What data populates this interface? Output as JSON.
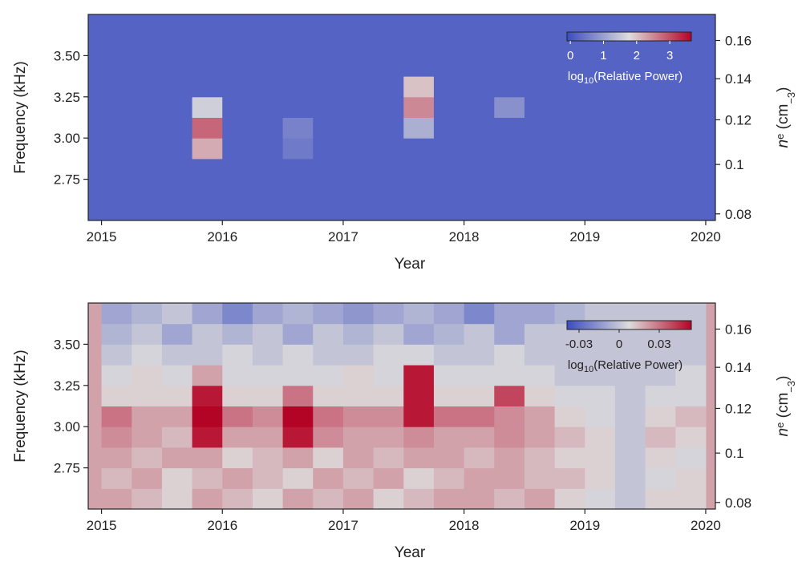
{
  "chart_data": [
    {
      "type": "heatmap",
      "xlabel": "Year",
      "ylabel": "Frequency (kHz)",
      "y2label": [
        "n",
        "e",
        " (cm",
        "−3",
        ")"
      ],
      "xlim": [
        2014.89,
        2020.08
      ],
      "xticks": [
        2015,
        2016,
        2017,
        2018,
        2019,
        2020
      ],
      "ylim": [
        2.5,
        3.75
      ],
      "yticks": [
        2.75,
        {
          "value": 3.0,
          "label": "3.00"
        },
        3.25,
        {
          "value": 3.5,
          "label": "3.50"
        }
      ],
      "y2scale": "sqrt",
      "y2lim": [
        0.0775,
        0.1744
      ],
      "y2ticks": [
        0.08,
        0.1,
        0.12,
        0.14,
        0.16
      ],
      "x_bins": [
        2015,
        2015.25,
        2015.5,
        2015.75,
        2016,
        2016.25,
        2016.5,
        2016.75,
        2017,
        2017.25,
        2017.5,
        2017.75,
        2018,
        2018.25,
        2018.5,
        2018.75,
        2019,
        2019.25,
        2019.5,
        2019.75,
        2020
      ],
      "y_bins": [
        2.5,
        2.625,
        2.75,
        2.875,
        3.0,
        3.125,
        3.25,
        3.375,
        3.5,
        3.625,
        3.75
      ],
      "z": [
        [
          0.2,
          0.2,
          0.2,
          0.2,
          0.2,
          0.2,
          0.2,
          0.2,
          0.2,
          0.2,
          0.2,
          0.2,
          0.2,
          0.2,
          0.2,
          0.2,
          0.2,
          0.2,
          0.2,
          0.2
        ],
        [
          0.2,
          0.2,
          0.2,
          0.2,
          0.2,
          0.2,
          0.2,
          0.2,
          0.2,
          0.2,
          0.2,
          0.2,
          0.2,
          0.2,
          0.2,
          0.2,
          0.2,
          0.2,
          0.2,
          0.2
        ],
        [
          0.2,
          0.2,
          0.2,
          0.2,
          0.2,
          0.2,
          0.2,
          0.2,
          0.2,
          0.2,
          0.2,
          0.2,
          0.2,
          0.2,
          0.2,
          0.2,
          0.2,
          0.2,
          0.2,
          0.2
        ],
        [
          0.2,
          0.2,
          0.2,
          2.2,
          0.2,
          0.2,
          0.5,
          0.2,
          0.2,
          0.2,
          0.2,
          0.2,
          0.2,
          0.2,
          0.2,
          0.2,
          0.2,
          0.2,
          0.2,
          0.2
        ],
        [
          0.2,
          0.2,
          0.2,
          2.8,
          0.2,
          0.2,
          0.6,
          0.2,
          0.2,
          0.2,
          1.2,
          0.2,
          0.2,
          0.2,
          0.2,
          0.2,
          0.2,
          0.2,
          0.2,
          0.2
        ],
        [
          0.2,
          0.2,
          0.2,
          1.6,
          0.2,
          0.2,
          0.2,
          0.2,
          0.2,
          0.2,
          2.5,
          0.2,
          0.2,
          0.8,
          0.2,
          0.2,
          0.2,
          0.2,
          0.2,
          0.2
        ],
        [
          0.2,
          0.2,
          0.2,
          0.2,
          0.2,
          0.2,
          0.2,
          0.2,
          0.2,
          0.2,
          2.0,
          0.2,
          0.2,
          0.2,
          0.2,
          0.2,
          0.2,
          0.2,
          0.2,
          0.2
        ],
        [
          0.2,
          0.2,
          0.2,
          0.2,
          0.2,
          0.2,
          0.2,
          0.2,
          0.2,
          0.2,
          0.2,
          0.2,
          0.2,
          0.2,
          0.2,
          0.2,
          0.2,
          0.2,
          0.2,
          0.2
        ],
        [
          0.2,
          0.2,
          0.2,
          0.2,
          0.2,
          0.2,
          0.2,
          0.2,
          0.2,
          0.2,
          0.2,
          0.2,
          0.2,
          0.2,
          0.2,
          0.2,
          0.2,
          0.2,
          0.2,
          0.2
        ],
        [
          0.2,
          0.2,
          0.2,
          0.2,
          0.2,
          0.2,
          0.2,
          0.2,
          0.2,
          0.2,
          0.2,
          0.2,
          0.2,
          0.2,
          0.2,
          0.2,
          0.2,
          0.2,
          0.2,
          0.2
        ]
      ],
      "colors": [
        "#3b4cc0",
        "#dddcdc",
        "#b40426"
      ],
      "clim": [
        -0.1,
        3.65
      ],
      "cticks": [
        0,
        1,
        2,
        3
      ],
      "clabel": [
        "log",
        "10",
        "(Relative Power)"
      ]
    },
    {
      "type": "heatmap",
      "xlabel": "Year",
      "ylabel": "Frequency (kHz)",
      "y2label": [
        "n",
        "e",
        " (cm",
        "−3",
        ")"
      ],
      "xlim": [
        2014.89,
        2020.08
      ],
      "xticks": [
        2015,
        2016,
        2017,
        2018,
        2019,
        2020
      ],
      "ylim": [
        2.5,
        3.75
      ],
      "yticks": [
        2.75,
        {
          "value": 3.0,
          "label": "3.00"
        },
        3.25,
        {
          "value": 3.5,
          "label": "3.50"
        }
      ],
      "y2scale": "sqrt",
      "y2lim": [
        0.0775,
        0.1744
      ],
      "y2ticks": [
        0.08,
        0.1,
        0.12,
        0.14,
        0.16
      ],
      "x_bins": [
        2015,
        2015.25,
        2015.5,
        2015.75,
        2016,
        2016.25,
        2016.5,
        2016.75,
        2017,
        2017.25,
        2017.5,
        2017.75,
        2018,
        2018.25,
        2018.5,
        2018.75,
        2019,
        2019.25,
        2019.5,
        2019.75,
        2020
      ],
      "y_bins": [
        2.5,
        2.625,
        2.75,
        2.875,
        3.0,
        3.125,
        3.25,
        3.375,
        3.5,
        3.625,
        3.75
      ],
      "z": [
        [
          0.02,
          0.015,
          0.01,
          0.02,
          0.015,
          0.01,
          0.02,
          0.015,
          0.02,
          0.01,
          0.015,
          0.02,
          0.02,
          0.015,
          0.02,
          0.01,
          0.005,
          0,
          0.01,
          0.01
        ],
        [
          0.015,
          0.02,
          0.01,
          0.015,
          0.02,
          0.015,
          0.01,
          0.02,
          0.015,
          0.02,
          0.01,
          0.015,
          0.02,
          0.02,
          0.015,
          0.015,
          0.01,
          0,
          0.005,
          0.01
        ],
        [
          0.02,
          0.015,
          0.02,
          0.02,
          0.01,
          0.015,
          0.02,
          0.01,
          0.02,
          0.015,
          0.02,
          0.02,
          0.015,
          0.02,
          0.015,
          0.01,
          0.01,
          0,
          0.01,
          0.005
        ],
        [
          0.025,
          0.02,
          0.015,
          0.05,
          0.02,
          0.02,
          0.05,
          0.025,
          0.02,
          0.02,
          0.025,
          0.02,
          0.02,
          0.025,
          0.02,
          0.015,
          0.01,
          0,
          0.015,
          0.01
        ],
        [
          0.03,
          0.02,
          0.02,
          0.06,
          0.03,
          0.025,
          0.06,
          0.03,
          0.025,
          0.025,
          0.05,
          0.03,
          0.03,
          0.025,
          0.02,
          0.01,
          0.005,
          0,
          0.01,
          0.015
        ],
        [
          0.01,
          0.01,
          0.01,
          0.05,
          0.01,
          0.01,
          0.03,
          0.01,
          0.01,
          0.01,
          0.05,
          0.01,
          0.01,
          0.04,
          0.01,
          0.005,
          0.005,
          0,
          0.005,
          0.005
        ],
        [
          0.005,
          0.01,
          0.005,
          0.02,
          0.005,
          0.005,
          0.005,
          0.005,
          0.01,
          0.005,
          0.05,
          0.005,
          0.005,
          0.005,
          0.005,
          0,
          0,
          0,
          0,
          0.005
        ],
        [
          0,
          0.005,
          0,
          0,
          0.005,
          0,
          0.005,
          0,
          0,
          0.005,
          0.005,
          0,
          0,
          0.005,
          0,
          0,
          0,
          0,
          0,
          0
        ],
        [
          -0.005,
          0,
          -0.01,
          0,
          -0.005,
          0,
          -0.01,
          0,
          -0.005,
          0,
          -0.01,
          -0.005,
          0,
          -0.01,
          0,
          0,
          0,
          0,
          0,
          0
        ],
        [
          -0.01,
          -0.005,
          0,
          -0.01,
          -0.02,
          -0.01,
          -0.005,
          -0.01,
          -0.015,
          -0.01,
          -0.005,
          -0.01,
          -0.02,
          -0.01,
          -0.01,
          -0.005,
          0,
          0,
          0,
          0
        ]
      ],
      "colors": [
        "#3b4cc0",
        "#dddcdc",
        "#b40426"
      ],
      "clim": [
        -0.039,
        0.054
      ],
      "cticks": [
        -0.03,
        0,
        0.03
      ],
      "clabel": [
        "log",
        "10",
        "(Relative Power)"
      ]
    }
  ]
}
